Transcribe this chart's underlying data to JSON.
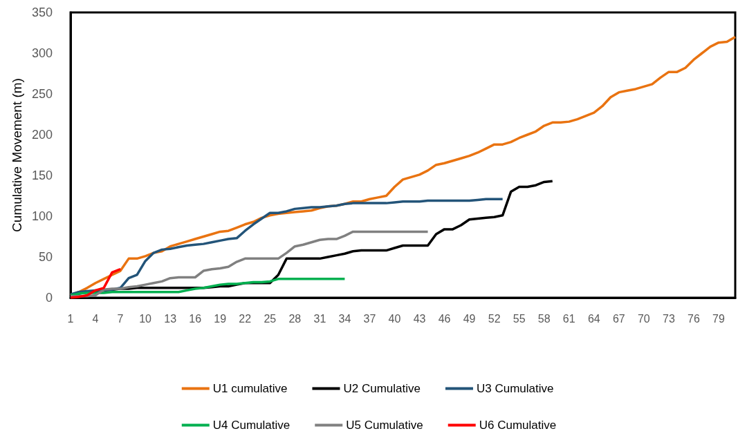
{
  "chart_data": {
    "type": "line",
    "ylabel": "Cumulative Movement (m)",
    "categories": [
      "1",
      null,
      null,
      "4",
      null,
      null,
      "7",
      null,
      null,
      "10",
      null,
      null,
      "13",
      null,
      null,
      "16",
      null,
      null,
      "19",
      null,
      null,
      "22",
      null,
      null,
      "25",
      null,
      null,
      "28",
      null,
      null,
      "31",
      null,
      null,
      "34",
      null,
      null,
      "37",
      null,
      null,
      "40",
      null,
      null,
      "43",
      null,
      null,
      "46",
      null,
      null,
      "49",
      null,
      null,
      "52",
      null,
      null,
      "55",
      null,
      null,
      "58",
      null,
      null,
      "61",
      null,
      null,
      "64",
      null,
      null,
      "67",
      null,
      null,
      "70",
      null,
      null,
      "73",
      null,
      null,
      "76",
      null,
      null,
      "79",
      null,
      null
    ],
    "series": [
      {
        "name": "U1 cumulative",
        "color": "#e97311",
        "values": [
          3,
          7,
          12,
          18,
          23,
          28,
          33,
          48,
          48,
          51,
          55,
          57,
          63,
          66,
          69,
          72,
          75,
          78,
          81,
          82,
          86,
          90,
          93,
          98,
          101,
          103,
          104,
          105,
          106,
          107,
          110,
          112,
          113,
          115,
          118,
          118,
          121,
          123,
          125,
          136,
          145,
          148,
          151,
          156,
          163,
          165,
          168,
          171,
          174,
          178,
          183,
          188,
          188,
          191,
          196,
          200,
          204,
          211,
          215,
          215,
          216,
          219,
          223,
          227,
          235,
          246,
          252,
          254,
          256,
          259,
          262,
          270,
          277,
          277,
          282,
          292,
          300,
          308,
          313,
          314,
          320
        ]
      },
      {
        "name": "U2 Cumulative",
        "color": "#000000",
        "values": [
          2,
          5,
          7,
          8,
          9,
          10,
          11,
          11,
          12,
          12,
          12,
          12,
          12,
          12,
          12,
          12,
          12,
          13,
          14,
          14,
          16,
          18,
          18,
          18,
          18,
          28,
          48,
          48,
          48,
          48,
          48,
          50,
          52,
          54,
          57,
          58,
          58,
          58,
          58,
          61,
          64,
          64,
          64,
          64,
          78,
          84,
          84,
          89,
          96,
          97,
          98,
          99,
          101,
          130,
          136,
          136,
          138,
          142,
          143,
          null,
          null,
          null,
          null,
          null,
          null,
          null,
          null,
          null,
          null,
          null,
          null,
          null,
          null,
          null,
          null,
          null,
          null,
          null,
          null,
          null,
          null
        ]
      },
      {
        "name": "U3 Cumulative",
        "color": "#235479",
        "values": [
          4,
          7,
          8,
          9,
          9,
          10,
          12,
          24,
          28,
          45,
          55,
          59,
          60,
          62,
          64,
          65,
          66,
          68,
          70,
          72,
          73,
          82,
          90,
          97,
          104,
          104,
          106,
          109,
          110,
          111,
          111,
          112,
          113,
          115,
          116,
          116,
          116,
          116,
          116,
          117,
          118,
          118,
          118,
          119,
          119,
          119,
          119,
          119,
          119,
          120,
          121,
          121,
          121,
          null,
          null,
          null,
          null,
          null,
          null,
          null,
          null,
          null,
          null,
          null,
          null,
          null,
          null,
          null,
          null,
          null,
          null,
          null,
          null,
          null,
          null,
          null,
          null,
          null,
          null,
          null,
          null
        ]
      },
      {
        "name": "U4 Cumulative",
        "color": "#00b050",
        "values": [
          3,
          5,
          6,
          6,
          6,
          7,
          7,
          7,
          7,
          7,
          7,
          7,
          7,
          7,
          9,
          11,
          12,
          14,
          16,
          17,
          17,
          18,
          19,
          19,
          20,
          23,
          23,
          23,
          23,
          23,
          23,
          23,
          23,
          23,
          null,
          null,
          null,
          null,
          null,
          null,
          null,
          null,
          null,
          null,
          null,
          null,
          null,
          null,
          null,
          null,
          null,
          null,
          null,
          null,
          null,
          null,
          null,
          null,
          null,
          null,
          null,
          null,
          null,
          null,
          null,
          null,
          null,
          null,
          null,
          null,
          null,
          null,
          null,
          null,
          null,
          null,
          null,
          null,
          null,
          null,
          null
        ]
      },
      {
        "name": "U5 Cumulative",
        "color": "#808080",
        "values": [
          2,
          2,
          2,
          3,
          10,
          11,
          11,
          13,
          14,
          16,
          18,
          20,
          24,
          25,
          25,
          25,
          33,
          35,
          36,
          38,
          44,
          48,
          48,
          48,
          48,
          48,
          55,
          63,
          65,
          68,
          71,
          72,
          72,
          76,
          81,
          81,
          81,
          81,
          81,
          81,
          81,
          81,
          81,
          81,
          null,
          null,
          null,
          null,
          null,
          null,
          null,
          null,
          null,
          null,
          null,
          null,
          null,
          null,
          null,
          null,
          null,
          null,
          null,
          null,
          null,
          null,
          null,
          null,
          null,
          null,
          null,
          null,
          null,
          null,
          null,
          null,
          null,
          null,
          null,
          null,
          null
        ]
      },
      {
        "name": "U6 Cumulative",
        "color": "#ff0000",
        "values": [
          0,
          1,
          3,
          9,
          12,
          31,
          35,
          null,
          null,
          null,
          null,
          null,
          null,
          null,
          null,
          null,
          null,
          null,
          null,
          null,
          null,
          null,
          null,
          null,
          null,
          null,
          null,
          null,
          null,
          null,
          null,
          null,
          null,
          null,
          null,
          null,
          null,
          null,
          null,
          null,
          null,
          null,
          null,
          null,
          null,
          null,
          null,
          null,
          null,
          null,
          null,
          null,
          null,
          null,
          null,
          null,
          null,
          null,
          null,
          null,
          null,
          null,
          null,
          null,
          null,
          null,
          null,
          null,
          null,
          null,
          null,
          null,
          null,
          null,
          null,
          null,
          null,
          null,
          null,
          null,
          null
        ]
      }
    ],
    "ylim": [
      0,
      350
    ],
    "yticks": [
      0,
      50,
      100,
      150,
      200,
      250,
      300,
      350
    ],
    "grid": false,
    "legend": "bottom",
    "marker": "none",
    "line_style": "solid"
  }
}
